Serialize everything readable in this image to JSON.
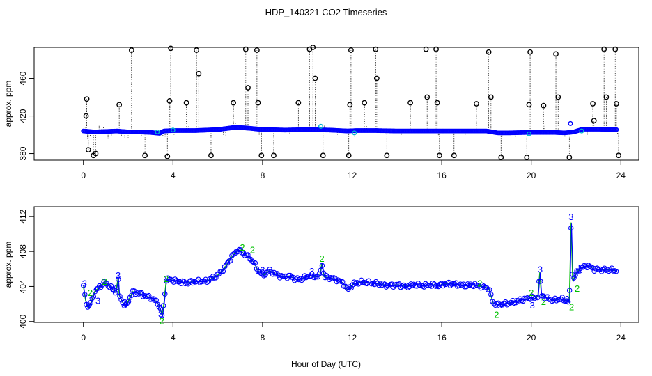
{
  "title": "HDP_140321  CO2 Timeseries",
  "xlabel": "Hour of Day (UTC)",
  "colors": {
    "black": "#000000",
    "blue": "#0000ff",
    "green": "#00c000",
    "cyan": "#00b0d0"
  },
  "chart_data": [
    {
      "type": "scatter",
      "ylabel": "approx. ppm",
      "xlim": [
        -2.2,
        24.8
      ],
      "ylim": [
        373,
        493
      ],
      "xticks": [
        0,
        4,
        8,
        12,
        16,
        20,
        24
      ],
      "yticks": [
        380,
        420,
        460
      ],
      "baseline": [
        [
          0,
          404
        ],
        [
          0.5,
          403
        ],
        [
          1.0,
          403.5
        ],
        [
          1.5,
          404
        ],
        [
          2.0,
          403
        ],
        [
          2.5,
          403
        ],
        [
          3.0,
          402.5
        ],
        [
          3.4,
          401.5
        ],
        [
          3.6,
          404
        ],
        [
          4.0,
          404.5
        ],
        [
          5.0,
          404.5
        ],
        [
          6.0,
          405.5
        ],
        [
          6.8,
          408
        ],
        [
          7.4,
          407
        ],
        [
          7.8,
          406
        ],
        [
          8.2,
          405.5
        ],
        [
          9.0,
          405
        ],
        [
          10.0,
          405.5
        ],
        [
          11.0,
          405
        ],
        [
          11.8,
          404
        ],
        [
          12.2,
          404.5
        ],
        [
          13.0,
          404.5
        ],
        [
          14.0,
          404
        ],
        [
          15.0,
          404
        ],
        [
          16.0,
          404
        ],
        [
          17.0,
          404
        ],
        [
          18.0,
          404
        ],
        [
          18.5,
          402
        ],
        [
          19.0,
          402
        ],
        [
          19.9,
          402.5
        ],
        [
          20.2,
          402.5
        ],
        [
          21.0,
          402.5
        ],
        [
          21.5,
          402
        ],
        [
          21.9,
          403
        ],
        [
          22.3,
          406
        ],
        [
          23.0,
          406
        ],
        [
          23.8,
          405.5
        ]
      ],
      "spikes": [
        [
          0.05,
          404
        ],
        [
          0.08,
          408
        ],
        [
          0.12,
          420
        ],
        [
          0.15,
          438
        ],
        [
          0.18,
          395
        ],
        [
          0.22,
          384
        ],
        [
          0.25,
          401
        ],
        [
          0.3,
          398
        ],
        [
          0.45,
          378
        ],
        [
          0.55,
          380
        ],
        [
          0.7,
          410
        ],
        [
          0.8,
          406
        ],
        [
          0.9,
          408
        ],
        [
          1.1,
          396
        ],
        [
          1.25,
          399
        ],
        [
          1.6,
          432
        ],
        [
          1.7,
          398
        ],
        [
          1.85,
          396
        ],
        [
          2.0,
          397
        ],
        [
          2.15,
          490
        ],
        [
          2.3,
          400
        ],
        [
          2.6,
          398
        ],
        [
          2.75,
          378
        ],
        [
          3.2,
          398
        ],
        [
          3.55,
          399
        ],
        [
          3.65,
          398
        ],
        [
          3.75,
          377
        ],
        [
          3.85,
          436
        ],
        [
          3.9,
          492
        ],
        [
          4.05,
          398
        ],
        [
          4.6,
          434
        ],
        [
          4.7,
          410
        ],
        [
          5.05,
          490
        ],
        [
          5.15,
          465
        ],
        [
          5.7,
          378
        ],
        [
          5.8,
          402
        ],
        [
          6.25,
          400
        ],
        [
          6.35,
          399
        ],
        [
          6.7,
          434
        ],
        [
          6.8,
          412
        ],
        [
          7.25,
          491
        ],
        [
          7.35,
          450
        ],
        [
          7.75,
          490
        ],
        [
          7.8,
          434
        ],
        [
          7.85,
          400
        ],
        [
          7.95,
          378
        ],
        [
          8.5,
          378
        ],
        [
          9.2,
          400
        ],
        [
          9.6,
          434
        ],
        [
          10.1,
          491
        ],
        [
          10.25,
          495
        ],
        [
          10.35,
          460
        ],
        [
          10.7,
          378
        ],
        [
          10.75,
          410
        ],
        [
          11.35,
          400
        ],
        [
          11.85,
          378
        ],
        [
          11.9,
          432
        ],
        [
          11.95,
          490
        ],
        [
          12.1,
          398
        ],
        [
          12.55,
          434
        ],
        [
          12.65,
          410
        ],
        [
          13.05,
          491
        ],
        [
          13.1,
          460
        ],
        [
          13.55,
          378
        ],
        [
          14.2,
          400
        ],
        [
          14.6,
          434
        ],
        [
          15.3,
          491
        ],
        [
          15.35,
          440
        ],
        [
          15.75,
          491
        ],
        [
          15.8,
          434
        ],
        [
          15.85,
          399
        ],
        [
          15.9,
          378
        ],
        [
          16.55,
          378
        ],
        [
          17.05,
          400
        ],
        [
          17.55,
          433
        ],
        [
          18.1,
          488
        ],
        [
          18.2,
          440
        ],
        [
          18.65,
          376
        ],
        [
          18.7,
          398
        ],
        [
          19.3,
          398
        ],
        [
          19.8,
          376
        ],
        [
          19.85,
          399
        ],
        [
          19.9,
          432
        ],
        [
          19.95,
          488
        ],
        [
          20.3,
          406
        ],
        [
          20.55,
          431
        ],
        [
          20.6,
          410
        ],
        [
          21.1,
          486
        ],
        [
          21.2,
          440
        ],
        [
          21.5,
          398
        ],
        [
          21.7,
          376
        ],
        [
          22.05,
          400
        ],
        [
          22.5,
          400
        ],
        [
          22.75,
          433
        ],
        [
          22.8,
          415
        ],
        [
          23.25,
          491
        ],
        [
          23.35,
          440
        ],
        [
          23.75,
          491
        ],
        [
          23.8,
          433
        ],
        [
          23.85,
          400
        ],
        [
          23.9,
          378
        ]
      ],
      "cyan_points": [
        [
          3.3,
          403
        ],
        [
          4.0,
          405
        ],
        [
          10.6,
          409
        ],
        [
          12.1,
          402
        ],
        [
          19.9,
          401
        ],
        [
          21.75,
          412
        ],
        [
          22.25,
          404
        ]
      ]
    },
    {
      "type": "line",
      "ylabel": "approx. ppm",
      "xlim": [
        -2.2,
        24.8
      ],
      "ylim": [
        399.9,
        413.1
      ],
      "xticks": [
        0,
        4,
        8,
        12,
        16,
        20,
        24
      ],
      "yticks": [
        400,
        404,
        408,
        412
      ],
      "series": [
        [
          0,
          404
        ],
        [
          0.1,
          402.4
        ],
        [
          0.2,
          401.6
        ],
        [
          0.35,
          402.2
        ],
        [
          0.5,
          403.4
        ],
        [
          0.7,
          403.9
        ],
        [
          0.9,
          404.4
        ],
        [
          1.1,
          404.2
        ],
        [
          1.3,
          403.7
        ],
        [
          1.45,
          403.3
        ],
        [
          1.55,
          405.0
        ],
        [
          1.6,
          403.0
        ],
        [
          1.75,
          402.2
        ],
        [
          1.9,
          401.7
        ],
        [
          2.05,
          402.6
        ],
        [
          2.2,
          403.4
        ],
        [
          2.5,
          403.2
        ],
        [
          2.8,
          402.9
        ],
        [
          3.0,
          402.7
        ],
        [
          3.2,
          402.4
        ],
        [
          3.35,
          402.0
        ],
        [
          3.45,
          401.3
        ],
        [
          3.52,
          400.6
        ],
        [
          3.6,
          402.2
        ],
        [
          3.7,
          404.8
        ],
        [
          3.85,
          404.8
        ],
        [
          4.2,
          404.6
        ],
        [
          4.6,
          404.4
        ],
        [
          5.0,
          404.6
        ],
        [
          5.5,
          404.6
        ],
        [
          5.8,
          405.0
        ],
        [
          6.0,
          405.3
        ],
        [
          6.3,
          406.1
        ],
        [
          6.6,
          407.3
        ],
        [
          6.9,
          408.2
        ],
        [
          7.1,
          407.9
        ],
        [
          7.4,
          407.3
        ],
        [
          7.6,
          406.8
        ],
        [
          7.8,
          405.8
        ],
        [
          8.05,
          405.3
        ],
        [
          8.3,
          405.8
        ],
        [
          8.6,
          405.4
        ],
        [
          8.9,
          405.1
        ],
        [
          9.2,
          405.2
        ],
        [
          9.5,
          404.8
        ],
        [
          9.8,
          404.9
        ],
        [
          10.1,
          405.3
        ],
        [
          10.3,
          405.1
        ],
        [
          10.55,
          405.2
        ],
        [
          10.65,
          406.7
        ],
        [
          10.75,
          405.1
        ],
        [
          11.0,
          405.0
        ],
        [
          11.3,
          404.8
        ],
        [
          11.6,
          404.4
        ],
        [
          11.8,
          403.6
        ],
        [
          12.05,
          404.3
        ],
        [
          12.4,
          404.5
        ],
        [
          12.8,
          404.4
        ],
        [
          13.2,
          404.3
        ],
        [
          13.6,
          404.1
        ],
        [
          14.0,
          404.2
        ],
        [
          14.4,
          404.0
        ],
        [
          14.8,
          404.2
        ],
        [
          15.2,
          404.1
        ],
        [
          15.6,
          404.2
        ],
        [
          15.9,
          404.1
        ],
        [
          16.1,
          404.3
        ],
        [
          16.5,
          404.3
        ],
        [
          17.0,
          404.1
        ],
        [
          17.4,
          404.2
        ],
        [
          17.8,
          404.0
        ],
        [
          18.1,
          403.8
        ],
        [
          18.3,
          402.1
        ],
        [
          18.5,
          401.9
        ],
        [
          18.8,
          402.0
        ],
        [
          19.2,
          402.2
        ],
        [
          19.6,
          402.5
        ],
        [
          19.85,
          402.6
        ],
        [
          20.0,
          402.8
        ],
        [
          20.15,
          402.6
        ],
        [
          20.3,
          403.0
        ],
        [
          20.38,
          405.6
        ],
        [
          20.45,
          403.0
        ],
        [
          20.7,
          402.7
        ],
        [
          21.0,
          402.4
        ],
        [
          21.3,
          402.6
        ],
        [
          21.55,
          402.4
        ],
        [
          21.7,
          402.2
        ],
        [
          21.78,
          411.3
        ],
        [
          21.85,
          404.6
        ],
        [
          22.0,
          405.5
        ],
        [
          22.2,
          406.1
        ],
        [
          22.5,
          406.4
        ],
        [
          22.8,
          406.0
        ],
        [
          23.2,
          405.9
        ],
        [
          23.5,
          405.9
        ],
        [
          23.8,
          405.8
        ]
      ],
      "labels": [
        {
          "text": "3",
          "x": 0.05,
          "y": 404.4,
          "color": "#0000ff"
        },
        {
          "text": "2",
          "x": 0.3,
          "y": 403.3,
          "color": "#00c000"
        },
        {
          "text": "3",
          "x": 0.65,
          "y": 402.4,
          "color": "#0000ff"
        },
        {
          "text": "2",
          "x": 0.95,
          "y": 404.6,
          "color": "#00c000"
        },
        {
          "text": "3",
          "x": 1.55,
          "y": 405.3,
          "color": "#0000ff"
        },
        {
          "text": "3",
          "x": 1.85,
          "y": 402.2,
          "color": "#0000ff"
        },
        {
          "text": "3",
          "x": 3.45,
          "y": 400.9,
          "color": "#0000ff"
        },
        {
          "text": "2",
          "x": 3.5,
          "y": 400.1,
          "color": "#00c000"
        },
        {
          "text": "2",
          "x": 3.7,
          "y": 404.9,
          "color": "#00c000"
        },
        {
          "text": "2",
          "x": 7.1,
          "y": 408.5,
          "color": "#00c000"
        },
        {
          "text": "2",
          "x": 7.55,
          "y": 408.2,
          "color": "#00c000"
        },
        {
          "text": "3",
          "x": 8.0,
          "y": 405.9,
          "color": "#0000ff"
        },
        {
          "text": "3",
          "x": 10.2,
          "y": 405.8,
          "color": "#0000ff"
        },
        {
          "text": "2",
          "x": 10.65,
          "y": 407.2,
          "color": "#00c000"
        },
        {
          "text": "2",
          "x": 17.7,
          "y": 404.4,
          "color": "#00c000"
        },
        {
          "text": "2",
          "x": 18.45,
          "y": 400.8,
          "color": "#00c000"
        },
        {
          "text": "2",
          "x": 20.0,
          "y": 403.3,
          "color": "#00c000"
        },
        {
          "text": "3",
          "x": 20.05,
          "y": 401.9,
          "color": "#0000ff"
        },
        {
          "text": "3",
          "x": 20.4,
          "y": 406.0,
          "color": "#0000ff"
        },
        {
          "text": "2",
          "x": 20.55,
          "y": 402.3,
          "color": "#00c000"
        },
        {
          "text": "3",
          "x": 21.6,
          "y": 402.6,
          "color": "#0000ff"
        },
        {
          "text": "3",
          "x": 21.78,
          "y": 412.0,
          "color": "#0000ff"
        },
        {
          "text": "2",
          "x": 21.8,
          "y": 401.7,
          "color": "#00c000"
        },
        {
          "text": "2",
          "x": 22.05,
          "y": 403.8,
          "color": "#00c000"
        },
        {
          "text": "3",
          "x": 22.2,
          "y": 406.2,
          "color": "#0000ff"
        }
      ]
    }
  ]
}
